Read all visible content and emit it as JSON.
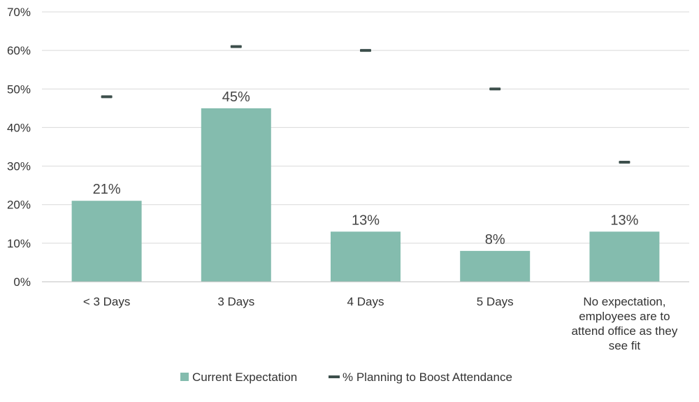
{
  "chart_data": {
    "type": "bar",
    "categories": [
      "< 3 Days",
      "3 Days",
      "4 Days",
      "5 Days",
      "No expectation, employees are to attend office as they see fit"
    ],
    "category_lines": [
      [
        "< 3 Days"
      ],
      [
        "3 Days"
      ],
      [
        "4 Days"
      ],
      [
        "5 Days"
      ],
      [
        "No expectation,",
        "employees are to",
        "attend office as they",
        "see fit"
      ]
    ],
    "series": [
      {
        "name": "Current Expectation",
        "type": "bar",
        "values": [
          21,
          45,
          13,
          8,
          13
        ],
        "data_labels": [
          "21%",
          "45%",
          "13%",
          "8%",
          "13%"
        ],
        "color": "#84bcae"
      },
      {
        "name": "% Planning to Boost Attendance",
        "type": "marker",
        "values": [
          48,
          61,
          60,
          50,
          31
        ],
        "color": "#3d4f4c"
      }
    ],
    "y_ticks": [
      "0%",
      "10%",
      "20%",
      "30%",
      "40%",
      "50%",
      "60%",
      "70%"
    ],
    "ylim": [
      0,
      70
    ],
    "grid": true,
    "legend": "bottom-center"
  }
}
